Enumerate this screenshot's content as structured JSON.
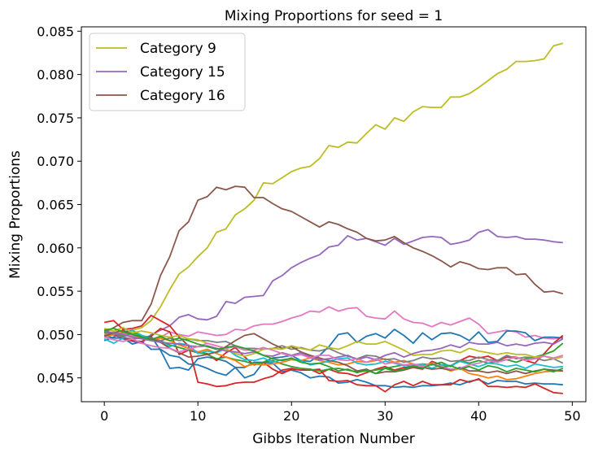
{
  "chart_data": {
    "type": "line",
    "title": "Mixing Proportions for seed = 1",
    "xlabel": "Gibbs Iteration Number",
    "ylabel": "Mixing Proportions",
    "xlim": [
      -2.45,
      51.45
    ],
    "ylim": [
      0.04225,
      0.0855
    ],
    "xticks": [
      0,
      10,
      20,
      30,
      40,
      50
    ],
    "xtick_labels": [
      "0",
      "10",
      "20",
      "30",
      "40",
      "50"
    ],
    "yticks": [
      0.045,
      0.05,
      0.055,
      0.06,
      0.065,
      0.07,
      0.075,
      0.08,
      0.085
    ],
    "ytick_labels": [
      "0.045",
      "0.050",
      "0.055",
      "0.060",
      "0.065",
      "0.070",
      "0.075",
      "0.080",
      "0.085"
    ],
    "grid": false,
    "legend": "upper-left",
    "legend_entries": [
      {
        "label": "Category 9",
        "color": "#bcbd22"
      },
      {
        "label": "Category 15",
        "color": "#9467bd"
      },
      {
        "label": "Category 16",
        "color": "#8c564b"
      }
    ],
    "x": [
      0,
      1,
      2,
      3,
      4,
      5,
      6,
      7,
      8,
      9,
      10,
      11,
      12,
      13,
      14,
      15,
      16,
      17,
      18,
      19,
      20,
      21,
      22,
      23,
      24,
      25,
      26,
      27,
      28,
      29,
      30,
      31,
      32,
      33,
      34,
      35,
      36,
      37,
      38,
      39,
      40,
      41,
      42,
      43,
      44,
      45,
      46,
      47,
      48,
      49
    ],
    "series": [
      {
        "color": "#bcbd22",
        "values": [
          0.05,
          0.0503,
          0.05,
          0.0505,
          0.0508,
          0.0516,
          0.0532,
          0.0552,
          0.057,
          0.0578,
          0.059,
          0.06,
          0.0618,
          0.0622,
          0.0638,
          0.0645,
          0.0655,
          0.0675,
          0.0674,
          0.0681,
          0.0688,
          0.0692,
          0.0694,
          0.0703,
          0.0718,
          0.0716,
          0.0722,
          0.0721,
          0.0732,
          0.0742,
          0.0737,
          0.075,
          0.0746,
          0.0757,
          0.0763,
          0.0762,
          0.0762,
          0.0774,
          0.0774,
          0.0778,
          0.0785,
          0.0793,
          0.0801,
          0.0806,
          0.0815,
          0.0815,
          0.0816,
          0.0818,
          0.0833,
          0.0836
        ]
      },
      {
        "color": "#9467bd",
        "values": [
          0.0502,
          0.05,
          0.0495,
          0.0492,
          0.049,
          0.05,
          0.0505,
          0.051,
          0.052,
          0.0523,
          0.0518,
          0.0517,
          0.0521,
          0.0538,
          0.0536,
          0.0543,
          0.0544,
          0.0545,
          0.0562,
          0.0568,
          0.0577,
          0.0583,
          0.0588,
          0.0592,
          0.0601,
          0.0603,
          0.0614,
          0.0609,
          0.0611,
          0.0607,
          0.0603,
          0.0611,
          0.0604,
          0.0608,
          0.0612,
          0.0613,
          0.0612,
          0.0604,
          0.0606,
          0.0609,
          0.0618,
          0.0621,
          0.0613,
          0.0612,
          0.0613,
          0.061,
          0.061,
          0.0609,
          0.0607,
          0.0606
        ]
      },
      {
        "color": "#8c564b",
        "values": [
          0.0502,
          0.0508,
          0.0514,
          0.0516,
          0.0516,
          0.0535,
          0.0568,
          0.059,
          0.062,
          0.063,
          0.0655,
          0.0659,
          0.067,
          0.0667,
          0.0671,
          0.067,
          0.0658,
          0.0658,
          0.0651,
          0.0645,
          0.0642,
          0.0636,
          0.063,
          0.0624,
          0.063,
          0.0627,
          0.0622,
          0.0618,
          0.0611,
          0.0608,
          0.0609,
          0.0613,
          0.0606,
          0.06,
          0.0596,
          0.0591,
          0.0585,
          0.0578,
          0.0584,
          0.0581,
          0.0576,
          0.0575,
          0.0577,
          0.0577,
          0.0569,
          0.057,
          0.0558,
          0.0549,
          0.055,
          0.0547
        ]
      },
      {
        "color": "#e377c2",
        "values": [
          0.0503,
          0.0499,
          0.0501,
          0.0498,
          0.0496,
          0.0495,
          0.0497,
          0.0503,
          0.05,
          0.0498,
          0.0503,
          0.0501,
          0.0499,
          0.05,
          0.0506,
          0.0505,
          0.051,
          0.0512,
          0.0512,
          0.0515,
          0.0519,
          0.0522,
          0.0527,
          0.0526,
          0.0532,
          0.0527,
          0.053,
          0.0531,
          0.0521,
          0.0519,
          0.0518,
          0.0527,
          0.0518,
          0.0514,
          0.0513,
          0.0509,
          0.0514,
          0.0511,
          0.0515,
          0.0519,
          0.0512,
          0.0501,
          0.0503,
          0.0505,
          0.0503,
          0.0497,
          0.0499,
          0.0496,
          0.0495,
          0.0497
        ]
      },
      {
        "color": "#1f77b4",
        "values": [
          0.0493,
          0.0497,
          0.0503,
          0.0505,
          0.0497,
          0.0498,
          0.0482,
          0.0461,
          0.0462,
          0.0459,
          0.0472,
          0.0474,
          0.0472,
          0.0469,
          0.0462,
          0.0462,
          0.0468,
          0.0468,
          0.0473,
          0.0474,
          0.0476,
          0.047,
          0.0469,
          0.0476,
          0.0486,
          0.05,
          0.0502,
          0.0491,
          0.0498,
          0.0501,
          0.0496,
          0.0506,
          0.0499,
          0.049,
          0.0502,
          0.0494,
          0.0501,
          0.0502,
          0.0499,
          0.0493,
          0.0503,
          0.0491,
          0.0492,
          0.0504,
          0.0504,
          0.0502,
          0.0493,
          0.0497,
          0.0497,
          0.0496
        ]
      },
      {
        "color": "#1f77b4",
        "values": [
          0.0499,
          0.0496,
          0.0496,
          0.0489,
          0.0492,
          0.0483,
          0.0483,
          0.0476,
          0.0474,
          0.0466,
          0.0465,
          0.0461,
          0.0456,
          0.0453,
          0.0462,
          0.045,
          0.0454,
          0.0468,
          0.0467,
          0.0457,
          0.0459,
          0.0456,
          0.045,
          0.0452,
          0.0451,
          0.0444,
          0.0445,
          0.0448,
          0.0445,
          0.0441,
          0.0441,
          0.0439,
          0.044,
          0.0439,
          0.0441,
          0.0441,
          0.0442,
          0.0444,
          0.0442,
          0.0446,
          0.0448,
          0.0443,
          0.0447,
          0.0446,
          0.0446,
          0.0443,
          0.0444,
          0.0443,
          0.0443,
          0.0442
        ]
      },
      {
        "color": "#d62728",
        "values": [
          0.0514,
          0.0516,
          0.0506,
          0.0507,
          0.051,
          0.0522,
          0.0516,
          0.051,
          0.0497,
          0.0487,
          0.0445,
          0.0443,
          0.044,
          0.0441,
          0.0444,
          0.0445,
          0.0445,
          0.0449,
          0.0452,
          0.0459,
          0.0461,
          0.0459,
          0.0459,
          0.046,
          0.0447,
          0.0446,
          0.0447,
          0.0442,
          0.0441,
          0.0441,
          0.0434,
          0.0442,
          0.0446,
          0.0441,
          0.0446,
          0.0442,
          0.0442,
          0.0442,
          0.0448,
          0.0445,
          0.0449,
          0.044,
          0.044,
          0.0439,
          0.044,
          0.0439,
          0.0443,
          0.0438,
          0.0433,
          0.0432
        ]
      },
      {
        "color": "#d62728",
        "values": [
          0.0505,
          0.05,
          0.0497,
          0.0493,
          0.0492,
          0.0498,
          0.0507,
          0.0503,
          0.0477,
          0.0482,
          0.0479,
          0.0478,
          0.047,
          0.0479,
          0.0485,
          0.0474,
          0.0465,
          0.0468,
          0.046,
          0.0455,
          0.046,
          0.0459,
          0.046,
          0.0455,
          0.046,
          0.0456,
          0.0455,
          0.0452,
          0.0456,
          0.046,
          0.0463,
          0.0459,
          0.0462,
          0.0462,
          0.046,
          0.0469,
          0.0465,
          0.0464,
          0.047,
          0.0475,
          0.0473,
          0.0475,
          0.047,
          0.0474,
          0.0474,
          0.047,
          0.0467,
          0.0478,
          0.049,
          0.0499
        ]
      },
      {
        "color": "#2ca02c",
        "values": [
          0.0503,
          0.0501,
          0.0498,
          0.0502,
          0.0499,
          0.0496,
          0.0493,
          0.0488,
          0.0485,
          0.0482,
          0.048,
          0.0477,
          0.0472,
          0.0474,
          0.0471,
          0.0469,
          0.0466,
          0.0468,
          0.047,
          0.0466,
          0.0463,
          0.0461,
          0.046,
          0.0458,
          0.046,
          0.0461,
          0.0459,
          0.0457,
          0.0458,
          0.0459,
          0.0461,
          0.0463,
          0.0465,
          0.0462,
          0.0466,
          0.0465,
          0.0468,
          0.0463,
          0.047,
          0.0467,
          0.047,
          0.0467,
          0.0469,
          0.0471,
          0.0468,
          0.0472,
          0.0474,
          0.0477,
          0.0481,
          0.049
        ]
      },
      {
        "color": "#ff7f0e",
        "values": [
          0.0497,
          0.05,
          0.0503,
          0.05,
          0.0496,
          0.0494,
          0.0496,
          0.0493,
          0.0488,
          0.0484,
          0.048,
          0.0483,
          0.0478,
          0.0474,
          0.047,
          0.0463,
          0.0466,
          0.0465,
          0.0466,
          0.0468,
          0.0471,
          0.047,
          0.0473,
          0.047,
          0.0468,
          0.0465,
          0.0466,
          0.0469,
          0.0468,
          0.047,
          0.0472,
          0.0468,
          0.047,
          0.0466,
          0.0464,
          0.0467,
          0.0462,
          0.0458,
          0.0461,
          0.0455,
          0.0453,
          0.045,
          0.0452,
          0.0448,
          0.0449,
          0.0452,
          0.0455,
          0.0457,
          0.0458,
          0.0458
        ]
      },
      {
        "color": "#17becf",
        "values": [
          0.0495,
          0.049,
          0.0496,
          0.0505,
          0.0499,
          0.0495,
          0.0491,
          0.0486,
          0.049,
          0.0488,
          0.0478,
          0.0481,
          0.0479,
          0.0484,
          0.0476,
          0.0471,
          0.047,
          0.0473,
          0.0468,
          0.0471,
          0.0472,
          0.047,
          0.0465,
          0.0467,
          0.0469,
          0.0472,
          0.0473,
          0.0467,
          0.0465,
          0.0466,
          0.0469,
          0.0467,
          0.0464,
          0.0465,
          0.0466,
          0.0461,
          0.0465,
          0.0464,
          0.0469,
          0.0466,
          0.0463,
          0.0467,
          0.0466,
          0.0463,
          0.0465,
          0.0461,
          0.0466,
          0.0464,
          0.0462,
          0.0463
        ]
      },
      {
        "color": "#7f7f7f",
        "values": [
          0.0499,
          0.0501,
          0.0497,
          0.0495,
          0.0496,
          0.0495,
          0.0493,
          0.0496,
          0.0493,
          0.0495,
          0.0493,
          0.0493,
          0.0491,
          0.0492,
          0.0487,
          0.0484,
          0.0484,
          0.0483,
          0.0484,
          0.0487,
          0.0483,
          0.0485,
          0.0482,
          0.0481,
          0.0484,
          0.0479,
          0.0475,
          0.0472,
          0.0476,
          0.0475,
          0.0471,
          0.0472,
          0.0468,
          0.047,
          0.0474,
          0.0472,
          0.0473,
          0.0469,
          0.047,
          0.047,
          0.0474,
          0.0471,
          0.047,
          0.0476,
          0.0472,
          0.0474,
          0.0473,
          0.047,
          0.0472,
          0.0467
        ]
      },
      {
        "color": "#8c564b",
        "values": [
          0.0498,
          0.0502,
          0.0505,
          0.05,
          0.0497,
          0.0495,
          0.0491,
          0.0484,
          0.0479,
          0.0474,
          0.0475,
          0.0477,
          0.048,
          0.0486,
          0.0493,
          0.0499,
          0.0501,
          0.0495,
          0.0489,
          0.0484,
          0.0486,
          0.048,
          0.0476,
          0.0473,
          0.047,
          0.0468,
          0.0464,
          0.0458,
          0.046,
          0.0455,
          0.0457,
          0.0457,
          0.0459,
          0.0462,
          0.0462,
          0.046,
          0.0461,
          0.0459,
          0.0462,
          0.0458,
          0.0458,
          0.0456,
          0.0458,
          0.0455,
          0.0458,
          0.0455,
          0.0458,
          0.046,
          0.0459,
          0.0458
        ]
      },
      {
        "color": "#bcbd22",
        "values": [
          0.0507,
          0.0504,
          0.0508,
          0.0502,
          0.0504,
          0.0502,
          0.0499,
          0.0497,
          0.0499,
          0.0495,
          0.0494,
          0.049,
          0.0487,
          0.0483,
          0.0478,
          0.0475,
          0.0478,
          0.0483,
          0.0484,
          0.0483,
          0.0487,
          0.0484,
          0.0482,
          0.0488,
          0.0485,
          0.0483,
          0.0487,
          0.0492,
          0.0489,
          0.0489,
          0.0492,
          0.0487,
          0.0482,
          0.0476,
          0.0477,
          0.0477,
          0.0481,
          0.0482,
          0.0479,
          0.0484,
          0.0481,
          0.0479,
          0.0477,
          0.0479,
          0.0477,
          0.0477,
          0.0474,
          0.0475,
          0.0472,
          0.0474
        ]
      },
      {
        "color": "#9467bd",
        "values": [
          0.0504,
          0.0502,
          0.05,
          0.0497,
          0.0495,
          0.0493,
          0.0491,
          0.049,
          0.0489,
          0.0487,
          0.0486,
          0.0487,
          0.0484,
          0.0481,
          0.048,
          0.0478,
          0.048,
          0.0476,
          0.0475,
          0.0479,
          0.0476,
          0.0479,
          0.0474,
          0.0471,
          0.0472,
          0.0474,
          0.0476,
          0.0471,
          0.0474,
          0.0471,
          0.0476,
          0.0479,
          0.0474,
          0.0478,
          0.0481,
          0.0482,
          0.0484,
          0.0488,
          0.0485,
          0.0491,
          0.0489,
          0.0489,
          0.0491,
          0.0487,
          0.0489,
          0.0487,
          0.049,
          0.0491,
          0.0489,
          0.0495
        ]
      },
      {
        "color": "#e377c2",
        "values": [
          0.0497,
          0.0494,
          0.0492,
          0.0495,
          0.049,
          0.0487,
          0.0485,
          0.0484,
          0.048,
          0.0483,
          0.0486,
          0.049,
          0.0487,
          0.0484,
          0.0486,
          0.0482,
          0.0482,
          0.0485,
          0.0482,
          0.0478,
          0.0475,
          0.0477,
          0.0473,
          0.0476,
          0.0476,
          0.0471,
          0.047,
          0.0472,
          0.0468,
          0.0472,
          0.0466,
          0.0468,
          0.0465,
          0.0466,
          0.0463,
          0.0466,
          0.0463,
          0.046,
          0.0461,
          0.0465,
          0.0467,
          0.047,
          0.0468,
          0.0471,
          0.0474,
          0.047,
          0.0472,
          0.0475,
          0.0473,
          0.0476
        ]
      },
      {
        "color": "#2ca02c",
        "values": [
          0.0505,
          0.0507,
          0.0503,
          0.05,
          0.0497,
          0.0494,
          0.0498,
          0.0493,
          0.0496,
          0.0493,
          0.0489,
          0.0486,
          0.0483,
          0.0485,
          0.0487,
          0.0484,
          0.0481,
          0.0476,
          0.0472,
          0.047,
          0.0473,
          0.0468,
          0.0466,
          0.0467,
          0.0463,
          0.0458,
          0.046,
          0.0456,
          0.0459,
          0.0455,
          0.0461,
          0.0458,
          0.046,
          0.0464,
          0.0461,
          0.0466,
          0.0462,
          0.0464,
          0.046,
          0.0463,
          0.0459,
          0.0464,
          0.0462,
          0.0457,
          0.0461,
          0.0459,
          0.0457,
          0.046,
          0.0457,
          0.0461
        ]
      }
    ]
  }
}
